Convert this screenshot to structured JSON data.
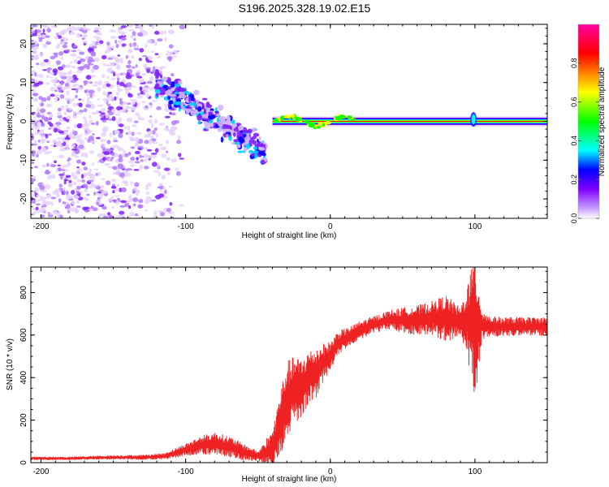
{
  "title": "S196.2025.328.19.02.E15",
  "chart_data": [
    {
      "type": "heatmap",
      "name": "spectrogram",
      "xlabel": "Height of straight line (km)",
      "ylabel": "Frequency (Hz)",
      "xlim": [
        -207,
        150
      ],
      "ylim": [
        -25,
        25
      ],
      "xticks": [
        -200,
        -100,
        0,
        100
      ],
      "xtick_labels": [
        "-200",
        "-100",
        "0",
        "100"
      ],
      "yticks": [
        -20,
        -10,
        0,
        10,
        20
      ],
      "ytick_labels": [
        "-20",
        "-10",
        "0",
        "10",
        "20"
      ],
      "colorbar": {
        "label": "Normalized spectral amplitude",
        "range": [
          0,
          1
        ],
        "ticks": [
          0.0,
          0.2,
          0.4,
          0.6,
          0.8
        ],
        "tick_labels": [
          "0.0",
          "0.2",
          "0.4",
          "0.6",
          "0.8"
        ],
        "colors": [
          "#ffffff",
          "#c8a0ff",
          "#8000ff",
          "#0000ff",
          "#00ffff",
          "#00ff00",
          "#ffff00",
          "#ff0000",
          "#ff00a0"
        ]
      },
      "regions": [
        {
          "desc": "scattered noise",
          "x": [
            -207,
            -110
          ],
          "freq": [
            -25,
            25
          ],
          "amplitude": 0.1
        },
        {
          "desc": "descending blob",
          "x": [
            -120,
            -45
          ],
          "freq": [
            10,
            -8
          ],
          "amplitude": 0.2
        },
        {
          "desc": "ridge",
          "x": [
            -40,
            150
          ],
          "freq": [
            0,
            0
          ],
          "amplitude": 0.9
        }
      ]
    },
    {
      "type": "line",
      "name": "snr",
      "xlabel": "Height of straight line (km)",
      "ylabel": "SNR (10 * v/v)",
      "xlim": [
        -207,
        150
      ],
      "ylim": [
        0,
        920
      ],
      "xticks": [
        -200,
        -100,
        0,
        100
      ],
      "xtick_labels": [
        "-200",
        "-100",
        "0",
        "100"
      ],
      "yticks": [
        0,
        200,
        400,
        600,
        800
      ],
      "ytick_labels": [
        "0",
        "200",
        "400",
        "600",
        "800"
      ],
      "color": "#ee2222",
      "series": [
        {
          "name": "SNR",
          "x": [
            -207,
            -180,
            -150,
            -130,
            -115,
            -100,
            -90,
            -80,
            -70,
            -60,
            -50,
            -40,
            -35,
            -30,
            -25,
            -20,
            -15,
            -10,
            -5,
            0,
            5,
            10,
            15,
            20,
            30,
            40,
            50,
            60,
            70,
            80,
            90,
            95,
            100,
            105,
            110,
            120,
            130,
            140,
            150
          ],
          "y": [
            20,
            20,
            25,
            25,
            30,
            60,
            80,
            90,
            75,
            50,
            30,
            60,
            180,
            300,
            340,
            350,
            400,
            420,
            470,
            500,
            560,
            580,
            600,
            620,
            650,
            670,
            670,
            670,
            680,
            680,
            660,
            670,
            640,
            650,
            640,
            640,
            640,
            640,
            640
          ],
          "spread": [
            8,
            8,
            10,
            12,
            15,
            30,
            45,
            55,
            50,
            40,
            25,
            100,
            150,
            180,
            160,
            140,
            130,
            120,
            90,
            70,
            60,
            50,
            45,
            45,
            40,
            45,
            60,
            70,
            80,
            110,
            70,
            180,
            350,
            70,
            50,
            45,
            45,
            45,
            45
          ]
        }
      ]
    }
  ]
}
